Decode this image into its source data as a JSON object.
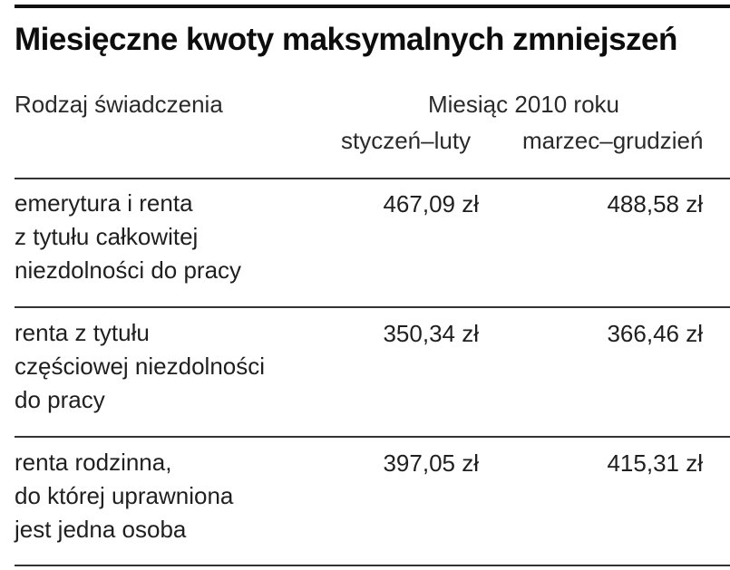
{
  "title": "Miesięczne kwoty maksymalnych zmniejszeń",
  "header": {
    "label_col": "Rodzaj świadczenia",
    "group": "Miesiąc 2010 roku",
    "col1": "styczeń–luty",
    "col2": "marzec–grudzień"
  },
  "rows": [
    {
      "lines": [
        "emerytura i renta",
        "z tytułu całkowitej",
        "niezdolności do pracy"
      ],
      "col1": "467,09 zł",
      "col2": "488,58 zł"
    },
    {
      "lines": [
        "renta z tytułu",
        "częściowej niezdolności",
        "do pracy"
      ],
      "col1": "350,34 zł",
      "col2": "366,46 zł"
    },
    {
      "lines": [
        "renta rodzinna,",
        "do której uprawniona",
        "jest jedna osoba"
      ],
      "col1": "397,05 zł",
      "col2": "415,31 zł"
    }
  ]
}
